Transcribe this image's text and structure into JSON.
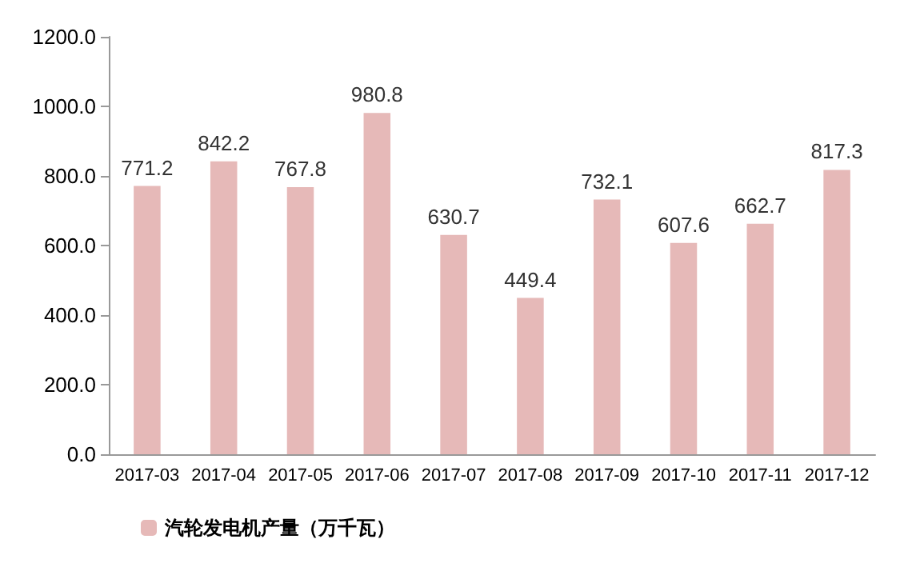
{
  "chart_data": {
    "type": "bar",
    "categories": [
      "2017-03",
      "2017-04",
      "2017-05",
      "2017-06",
      "2017-07",
      "2017-08",
      "2017-09",
      "2017-10",
      "2017-11",
      "2017-12"
    ],
    "series": [
      {
        "name": "汽轮发电机产量（万千瓦）",
        "color": "#e6b9b8",
        "values": [
          771.2,
          842.2,
          767.8,
          980.8,
          630.7,
          449.4,
          732.1,
          607.6,
          662.7,
          817.3
        ]
      }
    ],
    "ylim": [
      0,
      1200
    ],
    "yticks": [
      {
        "value": 0,
        "label": "0.0"
      },
      {
        "value": 200,
        "label": "200.0"
      },
      {
        "value": 400,
        "label": "400.0"
      },
      {
        "value": 600,
        "label": "600.0"
      },
      {
        "value": 800,
        "label": "800.0"
      },
      {
        "value": 1000,
        "label": "1000.0"
      },
      {
        "value": 1200,
        "label": "1200.0"
      }
    ],
    "data_labels": true,
    "grid": false,
    "legend": "bottom left"
  }
}
